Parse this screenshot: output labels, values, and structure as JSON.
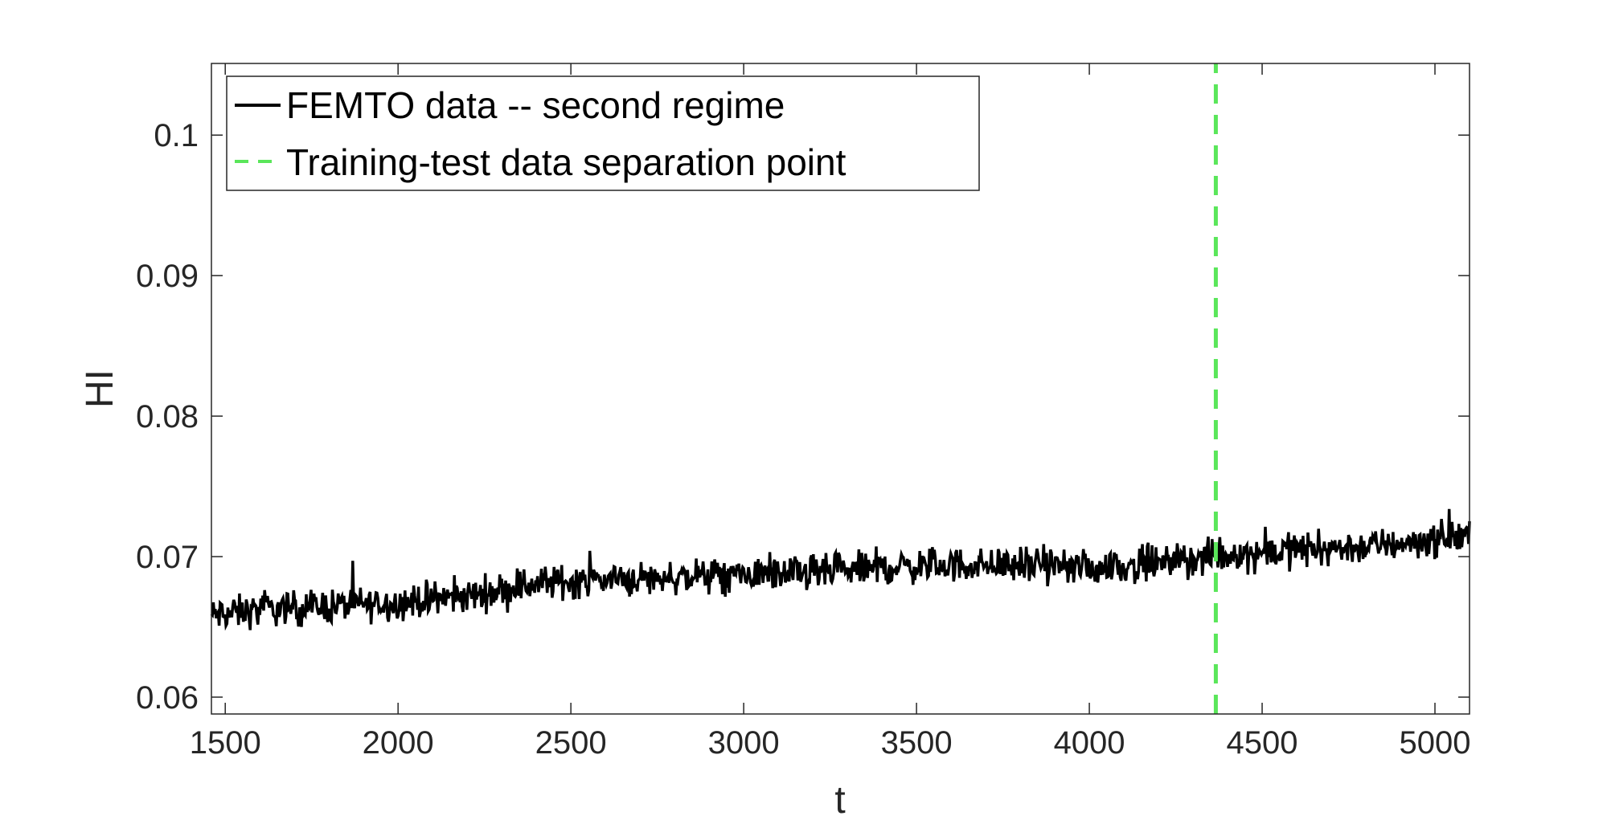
{
  "chart_data": {
    "type": "line",
    "xlabel": "t",
    "ylabel": "HI",
    "xlim": [
      1460,
      5100
    ],
    "ylim": [
      0.0588,
      0.1051
    ],
    "xticks": [
      1500,
      2000,
      2500,
      3000,
      3500,
      4000,
      4500,
      5000
    ],
    "xtick_labels": [
      "1500",
      "2000",
      "2500",
      "3000",
      "3500",
      "4000",
      "4500",
      "5000"
    ],
    "yticks": [
      0.06,
      0.07,
      0.08,
      0.09,
      0.1
    ],
    "ytick_labels": [
      "0.06",
      "0.07",
      "0.08",
      "0.09",
      "0.1"
    ],
    "grid": false,
    "legend_position": "top-left",
    "series": [
      {
        "name": "FEMTO data -- second regime",
        "color": "#000000",
        "style": "solid",
        "x": [
          1460,
          1600,
          1800,
          2000,
          2200,
          2400,
          2600,
          2800,
          3000,
          3200,
          3400,
          3600,
          3800,
          4000,
          4200,
          4400,
          4600,
          4800,
          5000,
          5100
        ],
        "values": [
          0.0658,
          0.0662,
          0.0665,
          0.0667,
          0.0672,
          0.0681,
          0.0684,
          0.0685,
          0.0687,
          0.0688,
          0.0692,
          0.0694,
          0.0694,
          0.0692,
          0.0695,
          0.0701,
          0.0705,
          0.0707,
          0.0712,
          0.0715
        ],
        "noise_amplitude": 0.0012
      },
      {
        "name": "Training-test data separation point",
        "color": "#5ae65a",
        "style": "dashed",
        "x": [
          4366,
          4366
        ],
        "values": [
          0.0588,
          0.1051
        ]
      }
    ]
  }
}
